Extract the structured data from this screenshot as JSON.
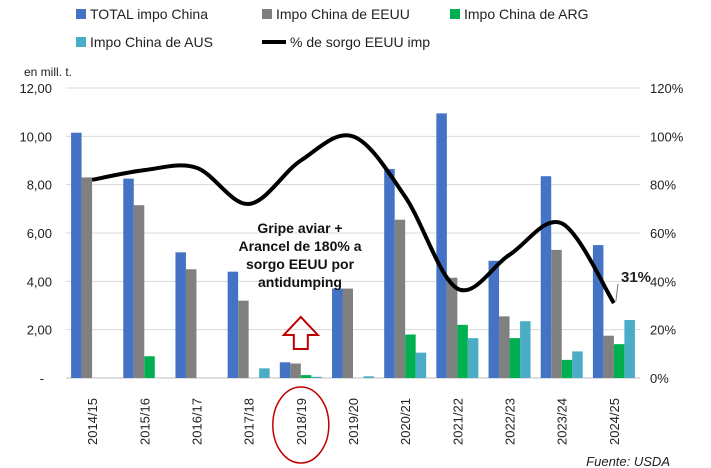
{
  "chart_data": {
    "type": "bar",
    "categories": [
      "2014/15",
      "2015/16",
      "2016/17",
      "2017/18",
      "2018/19",
      "2019/20",
      "2020/21",
      "2021/22",
      "2022/23",
      "2023/24",
      "2024/25"
    ],
    "series": [
      {
        "name": "TOTAL impo China",
        "color": "#4472C4",
        "values": [
          10.15,
          8.25,
          5.2,
          4.4,
          0.65,
          3.7,
          8.65,
          10.95,
          4.85,
          8.35,
          5.5
        ]
      },
      {
        "name": "Impo China de EEUU",
        "color": "#808080",
        "values": [
          8.3,
          7.15,
          4.5,
          3.2,
          0.6,
          3.7,
          6.55,
          4.15,
          2.55,
          5.3,
          1.75
        ]
      },
      {
        "name": "Impo China de ARG",
        "color": "#00B050",
        "values": [
          0,
          0.9,
          0,
          0,
          0.12,
          0,
          1.8,
          2.2,
          1.65,
          0.75,
          1.4
        ]
      },
      {
        "name": "Impo China de AUS",
        "color": "#4BACC6",
        "values": [
          0,
          0,
          0,
          0.4,
          0.05,
          0.07,
          1.05,
          1.65,
          2.35,
          1.1,
          2.4
        ]
      }
    ],
    "line_series": {
      "name": "% de sorgo EEUU imp",
      "color": "#000000",
      "values": [
        82,
        86,
        87,
        72,
        90,
        100,
        75,
        37,
        51,
        64,
        31
      ]
    },
    "ylabel": "en mill. t.",
    "ylim": [
      0,
      12
    ],
    "yticks": [
      "-",
      "2,00",
      "4,00",
      "6,00",
      "8,00",
      "10,00",
      "12,00"
    ],
    "y2lim": [
      0,
      120
    ],
    "y2ticks": [
      "0%",
      "20%",
      "40%",
      "60%",
      "80%",
      "100%",
      "120%"
    ],
    "grid": true,
    "legend_position": "top",
    "annotations": {
      "note": [
        "Gripe aviar +",
        "Arancel de 180% a",
        "sorgo EEUU por",
        "antidumping"
      ],
      "last_label": "31%",
      "highlighted_category": "2018/19"
    },
    "source": "Fuente: USDA"
  }
}
